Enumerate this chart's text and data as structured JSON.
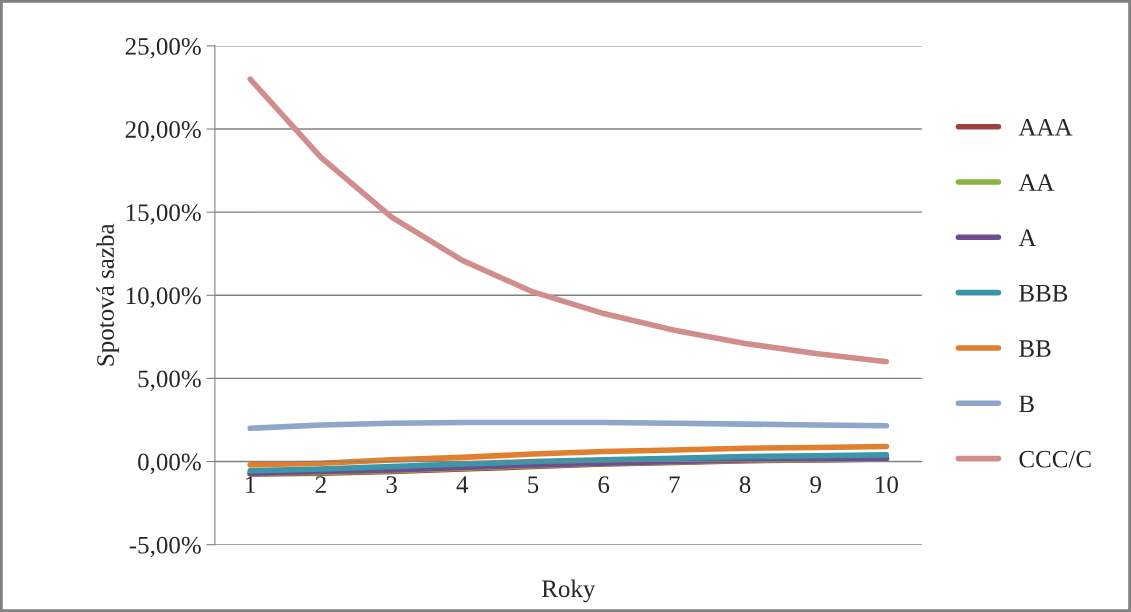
{
  "chart_data": {
    "type": "line",
    "xlabel": "Roky",
    "ylabel": "Spotová sazba",
    "categories": [
      "1",
      "2",
      "3",
      "4",
      "5",
      "6",
      "7",
      "8",
      "9",
      "10"
    ],
    "series": [
      {
        "name": "AAA",
        "color": "#a0403d",
        "values": [
          -0.75,
          -0.7,
          -0.6,
          -0.45,
          -0.3,
          -0.15,
          -0.05,
          0.05,
          0.1,
          0.15
        ]
      },
      {
        "name": "AA",
        "color": "#8bb440",
        "values": [
          -0.7,
          -0.65,
          -0.55,
          -0.4,
          -0.25,
          -0.12,
          -0.02,
          0.07,
          0.12,
          0.17
        ]
      },
      {
        "name": "A",
        "color": "#6f4e8f",
        "values": [
          -0.7,
          -0.6,
          -0.5,
          -0.35,
          -0.2,
          -0.1,
          0.0,
          0.1,
          0.15,
          0.2
        ]
      },
      {
        "name": "BBB",
        "color": "#3a97a9",
        "values": [
          -0.55,
          -0.45,
          -0.3,
          -0.15,
          0.0,
          0.1,
          0.2,
          0.3,
          0.35,
          0.4
        ]
      },
      {
        "name": "BB",
        "color": "#e07f2e",
        "values": [
          -0.2,
          -0.1,
          0.1,
          0.25,
          0.45,
          0.6,
          0.7,
          0.8,
          0.85,
          0.9
        ]
      },
      {
        "name": "B",
        "color": "#8ea5cc",
        "values": [
          2.0,
          2.2,
          2.3,
          2.35,
          2.35,
          2.35,
          2.3,
          2.25,
          2.2,
          2.15
        ]
      },
      {
        "name": "CCC/C",
        "color": "#d08d8b",
        "values": [
          23.0,
          18.3,
          14.7,
          12.1,
          10.2,
          8.9,
          7.9,
          7.1,
          6.5,
          6.0
        ]
      }
    ],
    "ylim": [
      -5,
      25
    ],
    "yticks": [
      {
        "value": -5,
        "label": "-5,00%"
      },
      {
        "value": 0,
        "label": "0,00%"
      },
      {
        "value": 5,
        "label": "5,00%"
      },
      {
        "value": 10,
        "label": "10,00%"
      },
      {
        "value": 15,
        "label": "15,00%"
      },
      {
        "value": 20,
        "label": "20,00%"
      },
      {
        "value": 25,
        "label": "25,00%"
      }
    ],
    "grid": "y",
    "legend": "right",
    "marker": "none",
    "line_style": "solid"
  }
}
